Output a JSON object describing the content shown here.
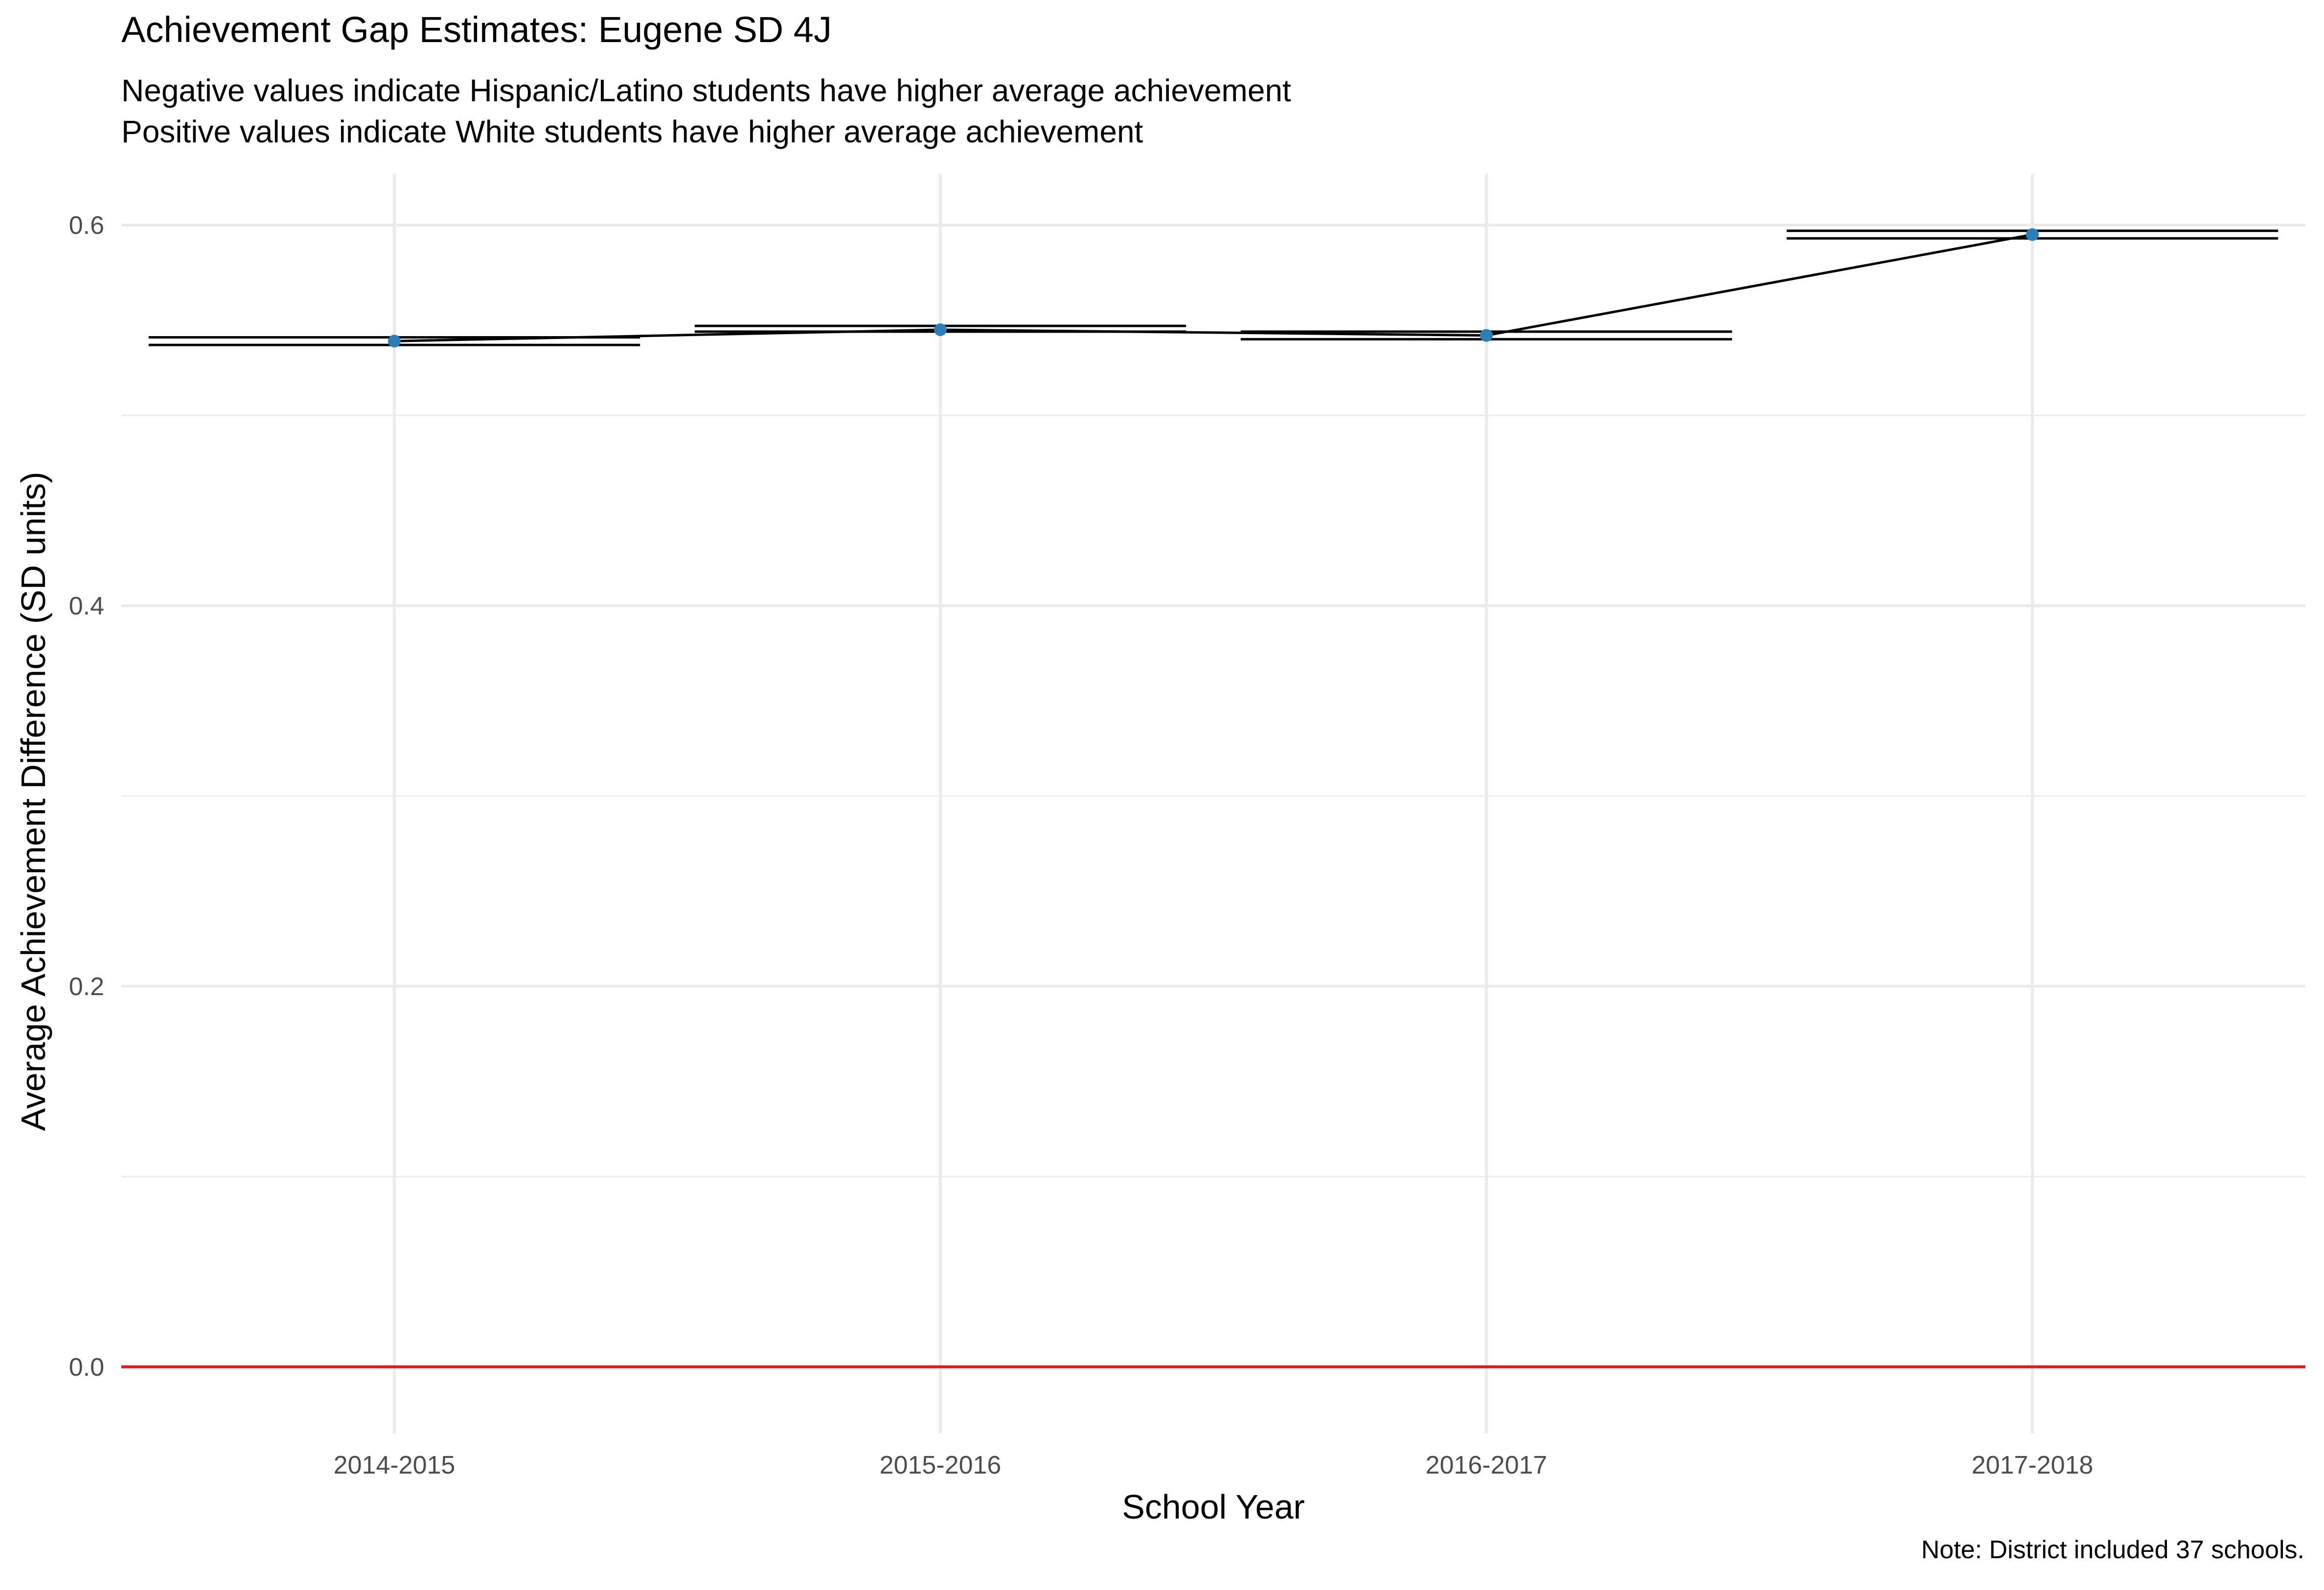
{
  "title": "Achievement Gap Estimates: Eugene SD 4J",
  "subtitle_lines": [
    "Negative values indicate Hispanic/Latino students have higher average achievement",
    "Positive values indicate White students have higher average achievement"
  ],
  "caption": "Note: District included 37 schools.",
  "chart_data": {
    "type": "line",
    "title": "Achievement Gap Estimates: Eugene SD 4J",
    "xlabel": "School Year",
    "ylabel": "Average Achievement Difference (SD units)",
    "categories": [
      "2014-2015",
      "2015-2016",
      "2016-2017",
      "2017-2018"
    ],
    "series": [
      {
        "values": [
          0.539,
          0.545,
          0.542,
          0.595
        ],
        "ci_lower": [
          0.537,
          0.544,
          0.54,
          0.593
        ],
        "ci_upper": [
          0.541,
          0.547,
          0.544,
          0.597
        ]
      }
    ],
    "reference_line": {
      "y": 0.0,
      "color": "#e41a1c"
    },
    "point_color": "#2c7fb8",
    "line_color": "#000000",
    "ylim": [
      -0.035,
      0.627
    ],
    "yticks": [
      0.0,
      0.2,
      0.4,
      0.6
    ],
    "yticklabels": [
      "0.0",
      "0.2",
      "0.4",
      "0.6"
    ],
    "grid": true,
    "legend": "none"
  }
}
